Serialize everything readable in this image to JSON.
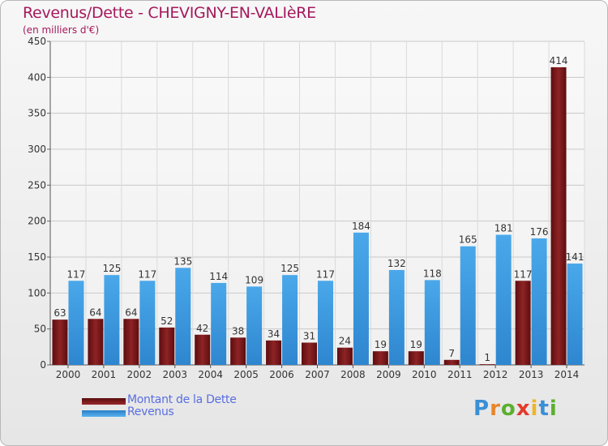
{
  "title": "Revenus/Dette - CHEVIGNY-EN-VALIèRE",
  "subtitle": "(en milliers d'€)",
  "logo": {
    "letters": [
      {
        "ch": "P",
        "color": "#3a8fd6"
      },
      {
        "ch": "r",
        "color": "#e8862a"
      },
      {
        "ch": "o",
        "color": "#5ab02e"
      },
      {
        "ch": "x",
        "color": "#e23a2a"
      },
      {
        "ch": "i",
        "color": "#f0b42a"
      },
      {
        "ch": "t",
        "color": "#3a8fd6"
      },
      {
        "ch": "i",
        "color": "#5ab02e"
      }
    ]
  },
  "chart_data": {
    "type": "bar",
    "categories": [
      "2000",
      "2001",
      "2002",
      "2003",
      "2004",
      "2005",
      "2006",
      "2007",
      "2008",
      "2009",
      "2010",
      "2011",
      "2012",
      "2013",
      "2014"
    ],
    "series": [
      {
        "name": "Montant de la Dette",
        "color": "#7a1416",
        "values": [
          63,
          64,
          64,
          52,
          42,
          38,
          34,
          31,
          24,
          19,
          19,
          7,
          1,
          117,
          414
        ]
      },
      {
        "name": "Revenus",
        "color": "#3d9be0",
        "values": [
          117,
          125,
          117,
          135,
          114,
          109,
          125,
          117,
          184,
          132,
          118,
          165,
          181,
          176,
          141
        ]
      }
    ],
    "ylim": [
      0,
      450
    ],
    "yticks": [
      0,
      50,
      100,
      150,
      200,
      250,
      300,
      350,
      400,
      450
    ],
    "grid": true,
    "legend": "bottom-left",
    "xlabel": "",
    "ylabel": ""
  }
}
